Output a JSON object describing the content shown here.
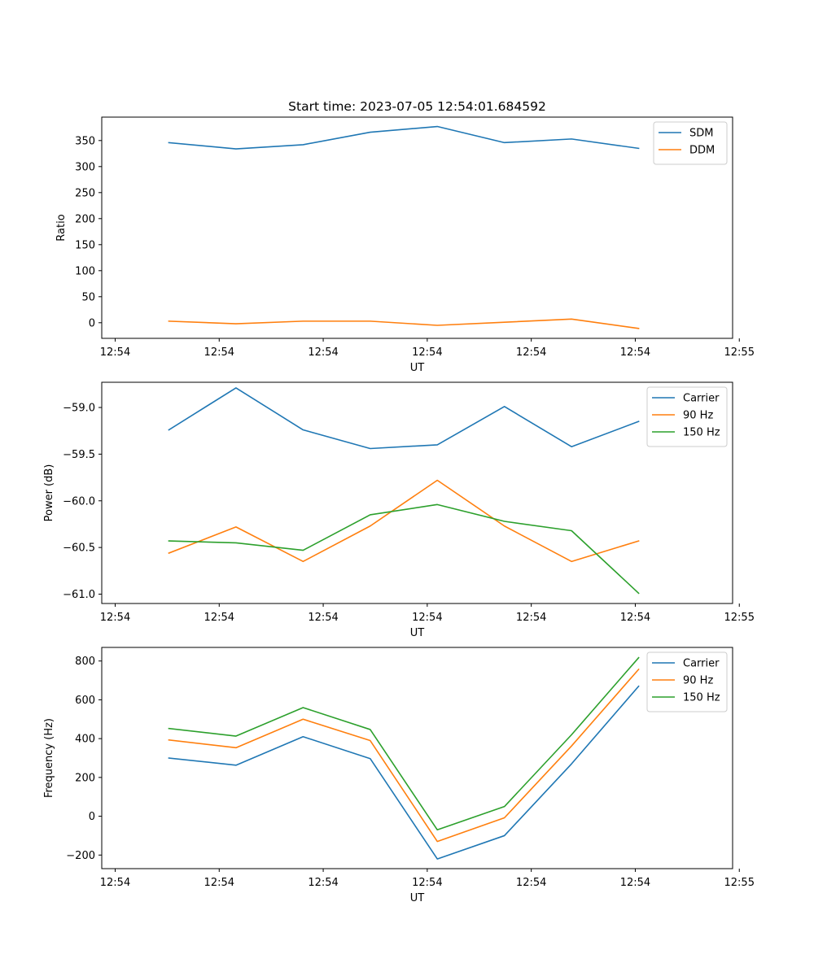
{
  "chart_data": [
    {
      "type": "line",
      "title": "Start time: 2023-07-05 12:54:01.684592",
      "xlabel": "UT",
      "ylabel": "Ratio",
      "xlim": [
        0,
        9.4
      ],
      "ylim": [
        -30,
        395
      ],
      "x": [
        1,
        2,
        3,
        4,
        5,
        6,
        7,
        8
      ],
      "xticks": [
        {
          "value": 0.2,
          "label": "12:54"
        },
        {
          "value": 1.75,
          "label": "12:54"
        },
        {
          "value": 3.3,
          "label": "12:54"
        },
        {
          "value": 4.85,
          "label": "12:54"
        },
        {
          "value": 6.4,
          "label": "12:54"
        },
        {
          "value": 7.95,
          "label": "12:54"
        },
        {
          "value": 9.5,
          "label": "12:55"
        }
      ],
      "yticks": [
        {
          "value": 0,
          "label": "0"
        },
        {
          "value": 50,
          "label": "50"
        },
        {
          "value": 100,
          "label": "100"
        },
        {
          "value": 150,
          "label": "150"
        },
        {
          "value": 200,
          "label": "200"
        },
        {
          "value": 250,
          "label": "250"
        },
        {
          "value": 300,
          "label": "300"
        },
        {
          "value": 350,
          "label": "350"
        }
      ],
      "legend_position": "upper right",
      "series": [
        {
          "name": "SDM",
          "color": "#1f77b4",
          "values": [
            346,
            334,
            342,
            366,
            377,
            346,
            353,
            335
          ]
        },
        {
          "name": "DDM",
          "color": "#ff7f0e",
          "values": [
            3,
            -2,
            3,
            3,
            -5,
            1,
            7,
            -11
          ]
        }
      ]
    },
    {
      "type": "line",
      "title": "",
      "xlabel": "UT",
      "ylabel": "Power (dB)",
      "xlim": [
        0,
        9.4
      ],
      "ylim": [
        -61.1,
        -58.73
      ],
      "x": [
        1,
        2,
        3,
        4,
        5,
        6,
        7,
        8
      ],
      "xticks": [
        {
          "value": 0.2,
          "label": "12:54"
        },
        {
          "value": 1.75,
          "label": "12:54"
        },
        {
          "value": 3.3,
          "label": "12:54"
        },
        {
          "value": 4.85,
          "label": "12:54"
        },
        {
          "value": 6.4,
          "label": "12:54"
        },
        {
          "value": 7.95,
          "label": "12:54"
        },
        {
          "value": 9.5,
          "label": "12:55"
        }
      ],
      "yticks": [
        {
          "value": -61.0,
          "label": "−61.0"
        },
        {
          "value": -60.5,
          "label": "−60.5"
        },
        {
          "value": -60.0,
          "label": "−60.0"
        },
        {
          "value": -59.5,
          "label": "−59.5"
        },
        {
          "value": -59.0,
          "label": "−59.0"
        }
      ],
      "legend_position": "upper right",
      "series": [
        {
          "name": "Carrier",
          "color": "#1f77b4",
          "values": [
            -59.24,
            -58.79,
            -59.24,
            -59.44,
            -59.4,
            -58.99,
            -59.42,
            -59.15
          ]
        },
        {
          "name": "90 Hz",
          "color": "#ff7f0e",
          "values": [
            -60.56,
            -60.28,
            -60.65,
            -60.27,
            -59.78,
            -60.27,
            -60.65,
            -60.43
          ]
        },
        {
          "name": "150 Hz",
          "color": "#2ca02c",
          "values": [
            -60.43,
            -60.45,
            -60.53,
            -60.15,
            -60.04,
            -60.22,
            -60.32,
            -60.99
          ]
        }
      ]
    },
    {
      "type": "line",
      "title": "",
      "xlabel": "UT",
      "ylabel": "Frequency (Hz)",
      "xlim": [
        0,
        9.4
      ],
      "ylim": [
        -270,
        870
      ],
      "x": [
        1,
        2,
        3,
        4,
        5,
        6,
        7,
        8
      ],
      "xticks": [
        {
          "value": 0.2,
          "label": "12:54"
        },
        {
          "value": 1.75,
          "label": "12:54"
        },
        {
          "value": 3.3,
          "label": "12:54"
        },
        {
          "value": 4.85,
          "label": "12:54"
        },
        {
          "value": 6.4,
          "label": "12:54"
        },
        {
          "value": 7.95,
          "label": "12:54"
        },
        {
          "value": 9.5,
          "label": "12:55"
        }
      ],
      "yticks": [
        {
          "value": -200,
          "label": "−200"
        },
        {
          "value": 0,
          "label": "0"
        },
        {
          "value": 200,
          "label": "200"
        },
        {
          "value": 400,
          "label": "400"
        },
        {
          "value": 600,
          "label": "600"
        },
        {
          "value": 800,
          "label": "800"
        }
      ],
      "legend_position": "upper right",
      "series": [
        {
          "name": "Carrier",
          "color": "#1f77b4",
          "values": [
            300,
            263,
            410,
            297,
            -220,
            -100,
            270,
            670
          ]
        },
        {
          "name": "90 Hz",
          "color": "#ff7f0e",
          "values": [
            393,
            353,
            500,
            390,
            -130,
            -8,
            362,
            757
          ]
        },
        {
          "name": "150 Hz",
          "color": "#2ca02c",
          "values": [
            452,
            413,
            560,
            447,
            -70,
            50,
            420,
            817
          ]
        }
      ]
    }
  ]
}
